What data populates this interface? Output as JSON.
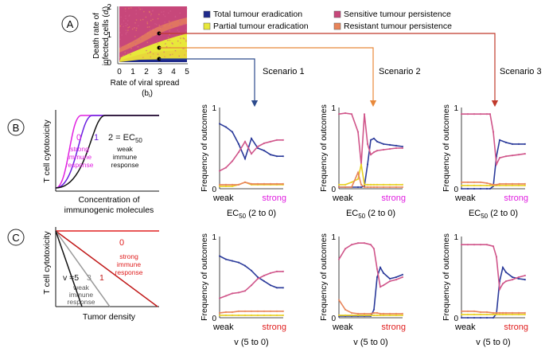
{
  "labels": {
    "A": "A",
    "B": "B",
    "C": "C"
  },
  "panel_a": {
    "y_label_line1": "Death rate of",
    "y_label_line2": "infected cells (",
    "y_label_sym": "d",
    "y_label_sub": "i",
    "y_label_end": ")",
    "x_label_line1": "Rate of viral spread",
    "x_label_sym": "(b",
    "x_label_sub": "i",
    "x_label_end": ")",
    "x_ticks": [
      "0",
      "1",
      "2",
      "3",
      "4",
      "5"
    ],
    "y_ticks": [
      "0",
      "1",
      "2"
    ],
    "colors": {
      "total": "#1f2a8c",
      "partial": "#e8e83a",
      "sensitive": "#c7477a",
      "resistant": "#e8845a"
    }
  },
  "legend": [
    {
      "label": "Total tumour eradication",
      "color": "#1f2a8c"
    },
    {
      "label": "Sensitive tumour persistence",
      "color": "#c7477a"
    },
    {
      "label": "Partial tumour eradication",
      "color": "#e8e83a"
    },
    {
      "label": "Resistant tumour persistence",
      "color": "#e8845a"
    }
  ],
  "scenarios": [
    {
      "label": "Scenario 1",
      "color": "#2c4a8c"
    },
    {
      "label": "Scenario 2",
      "color": "#e8893a"
    },
    {
      "label": "Scenario 3",
      "color": "#c0392b"
    }
  ],
  "panel_b": {
    "y_label": "T cell cytotoxicity",
    "x_label": "Concentration of",
    "x_label2": "immunogenic molecules",
    "curve0_label": "0",
    "curve1_label": "1",
    "curve2_label": "2 = EC",
    "curve2_sub": "50",
    "strong_text": [
      "strong",
      "immune",
      "response"
    ],
    "weak_text": [
      "weak",
      "immune",
      "response"
    ],
    "colors": {
      "c0": "#e020e0",
      "c1": "#6a1ee0",
      "c2": "#111111"
    }
  },
  "panel_c": {
    "y_label": "T cell cytotoxicity",
    "x_label": "Tumor density",
    "v_label": "v =5",
    "v3": "3",
    "v1": "1",
    "v0": "0",
    "strong_text": [
      "strong",
      "immune",
      "response"
    ],
    "weak_text": [
      "weak",
      "immune",
      "response"
    ],
    "colors": {
      "v0": "#e02020",
      "v1": "#c01818",
      "v3": "#999999",
      "v5": "#111111"
    }
  },
  "small_chart_common": {
    "y_label": "Frequency of outcomes",
    "y_ticks": [
      "0",
      "1"
    ],
    "x_weak": "weak",
    "x_strong": "strong",
    "xlabel_b_main": "EC",
    "xlabel_b_sub": "50",
    "xlabel_b_tail": " (2 to 0)",
    "xlabel_c": "v  (5 to 0)",
    "strong_color_b": "#e020e0",
    "strong_color_c": "#e02020"
  },
  "chart_data": [
    {
      "type": "line",
      "id": "B1",
      "title": "Scenario 1 / EC50",
      "xlabel": "EC50 (2 to 0)",
      "ylabel": "Frequency of outcomes",
      "ylim": [
        0,
        1
      ],
      "x": [
        0,
        0.1,
        0.2,
        0.3,
        0.4,
        0.5,
        0.6,
        0.7,
        0.8,
        0.9,
        1.0
      ],
      "series": [
        {
          "name": "Total tumour eradication",
          "values": [
            0.8,
            0.76,
            0.7,
            0.55,
            0.37,
            0.62,
            0.5,
            0.47,
            0.42,
            0.4,
            0.4
          ]
        },
        {
          "name": "Sensitive tumour persistence",
          "values": [
            0.22,
            0.26,
            0.34,
            0.45,
            0.58,
            0.43,
            0.52,
            0.56,
            0.58,
            0.6,
            0.6
          ]
        },
        {
          "name": "Partial tumour eradication",
          "values": [
            0.03,
            0.03,
            0.03,
            0.05,
            0.08,
            0.05,
            0.05,
            0.05,
            0.05,
            0.05,
            0.05
          ]
        },
        {
          "name": "Resistant tumour persistence",
          "values": [
            0.05,
            0.05,
            0.05,
            0.05,
            0.08,
            0.06,
            0.06,
            0.06,
            0.06,
            0.06,
            0.06
          ]
        }
      ]
    },
    {
      "type": "line",
      "id": "B2",
      "title": "Scenario 2 / EC50",
      "xlabel": "EC50 (2 to 0)",
      "ylabel": "Frequency of outcomes",
      "ylim": [
        0,
        1
      ],
      "x": [
        0,
        0.1,
        0.2,
        0.3,
        0.35,
        0.4,
        0.45,
        0.5,
        0.55,
        0.6,
        0.7,
        0.8,
        0.9,
        1.0
      ],
      "series": [
        {
          "name": "Total tumour eradication",
          "values": [
            0.02,
            0.02,
            0.02,
            0.02,
            0.02,
            0.03,
            0.3,
            0.6,
            0.62,
            0.58,
            0.55,
            0.54,
            0.53,
            0.52
          ]
        },
        {
          "name": "Sensitive tumour persistence",
          "values": [
            0.92,
            0.93,
            0.92,
            0.7,
            0.3,
            0.92,
            0.55,
            0.42,
            0.45,
            0.47,
            0.48,
            0.49,
            0.5,
            0.5
          ]
        },
        {
          "name": "Partial tumour eradication",
          "values": [
            0.05,
            0.05,
            0.08,
            0.12,
            0.3,
            0.05,
            0.05,
            0.05,
            0.05,
            0.05,
            0.05,
            0.05,
            0.05,
            0.05
          ]
        },
        {
          "name": "Resistant tumour persistence",
          "values": [
            0.02,
            0.02,
            0.02,
            0.2,
            0.05,
            0.02,
            0.02,
            0.02,
            0.02,
            0.02,
            0.02,
            0.02,
            0.02,
            0.02
          ]
        }
      ]
    },
    {
      "type": "line",
      "id": "B3",
      "title": "Scenario 3 / EC50",
      "xlabel": "EC50 (2 to 0)",
      "ylabel": "Frequency of outcomes",
      "ylim": [
        0,
        1
      ],
      "x": [
        0,
        0.1,
        0.2,
        0.3,
        0.4,
        0.45,
        0.5,
        0.55,
        0.6,
        0.7,
        0.8,
        0.9,
        1.0
      ],
      "series": [
        {
          "name": "Total tumour eradication",
          "values": [
            0.0,
            0.0,
            0.0,
            0.0,
            0.0,
            0.0,
            0.03,
            0.4,
            0.6,
            0.57,
            0.55,
            0.55,
            0.55
          ]
        },
        {
          "name": "Sensitive tumour persistence",
          "values": [
            0.92,
            0.92,
            0.92,
            0.92,
            0.92,
            0.92,
            0.7,
            0.3,
            0.38,
            0.4,
            0.41,
            0.42,
            0.43
          ]
        },
        {
          "name": "Partial tumour eradication",
          "values": [
            0.04,
            0.04,
            0.04,
            0.04,
            0.04,
            0.04,
            0.04,
            0.04,
            0.04,
            0.04,
            0.04,
            0.04,
            0.04
          ]
        },
        {
          "name": "Resistant tumour persistence",
          "values": [
            0.08,
            0.08,
            0.08,
            0.08,
            0.07,
            0.06,
            0.05,
            0.05,
            0.06,
            0.06,
            0.06,
            0.06,
            0.06
          ]
        }
      ]
    },
    {
      "type": "line",
      "id": "C1",
      "title": "Scenario 1 / v",
      "xlabel": "v (5 to 0)",
      "ylabel": "Frequency of outcomes",
      "ylim": [
        0,
        1
      ],
      "x": [
        0,
        0.1,
        0.2,
        0.3,
        0.4,
        0.5,
        0.6,
        0.7,
        0.8,
        0.9,
        1.0
      ],
      "series": [
        {
          "name": "Total tumour eradication",
          "values": [
            0.76,
            0.72,
            0.7,
            0.68,
            0.64,
            0.58,
            0.5,
            0.45,
            0.4,
            0.37,
            0.37
          ]
        },
        {
          "name": "Sensitive tumour persistence",
          "values": [
            0.24,
            0.27,
            0.3,
            0.31,
            0.33,
            0.4,
            0.48,
            0.52,
            0.55,
            0.57,
            0.57
          ]
        },
        {
          "name": "Partial tumour eradication",
          "values": [
            0.03,
            0.03,
            0.03,
            0.03,
            0.03,
            0.03,
            0.03,
            0.03,
            0.03,
            0.03,
            0.03
          ]
        },
        {
          "name": "Resistant tumour persistence",
          "values": [
            0.06,
            0.07,
            0.07,
            0.08,
            0.08,
            0.08,
            0.08,
            0.08,
            0.08,
            0.08,
            0.08
          ]
        }
      ]
    },
    {
      "type": "line",
      "id": "C2",
      "title": "Scenario 2 / v",
      "xlabel": "v (5 to 0)",
      "ylabel": "Frequency of outcomes",
      "ylim": [
        0,
        1
      ],
      "x": [
        0,
        0.1,
        0.2,
        0.3,
        0.4,
        0.5,
        0.55,
        0.6,
        0.65,
        0.7,
        0.8,
        0.9,
        1.0
      ],
      "series": [
        {
          "name": "Total tumour eradication",
          "values": [
            0.02,
            0.02,
            0.02,
            0.02,
            0.02,
            0.02,
            0.1,
            0.5,
            0.62,
            0.55,
            0.48,
            0.5,
            0.53
          ]
        },
        {
          "name": "Sensitive tumour persistence",
          "values": [
            0.72,
            0.85,
            0.9,
            0.92,
            0.92,
            0.9,
            0.85,
            0.6,
            0.38,
            0.4,
            0.45,
            0.47,
            0.5
          ]
        },
        {
          "name": "Partial tumour eradication",
          "values": [
            0.03,
            0.03,
            0.03,
            0.03,
            0.03,
            0.03,
            0.03,
            0.03,
            0.03,
            0.03,
            0.03,
            0.03,
            0.03
          ]
        },
        {
          "name": "Resistant tumour persistence",
          "values": [
            0.22,
            0.1,
            0.06,
            0.05,
            0.05,
            0.05,
            0.06,
            0.06,
            0.05,
            0.05,
            0.05,
            0.05,
            0.05
          ]
        }
      ]
    },
    {
      "type": "line",
      "id": "C3",
      "title": "Scenario 3 / v",
      "xlabel": "v (5 to 0)",
      "ylabel": "Frequency of outcomes",
      "ylim": [
        0,
        1
      ],
      "x": [
        0,
        0.1,
        0.2,
        0.3,
        0.4,
        0.5,
        0.55,
        0.6,
        0.65,
        0.7,
        0.8,
        0.9,
        1.0
      ],
      "series": [
        {
          "name": "Total tumour eradication",
          "values": [
            0.0,
            0.0,
            0.0,
            0.0,
            0.0,
            0.0,
            0.05,
            0.45,
            0.62,
            0.56,
            0.5,
            0.48,
            0.47
          ]
        },
        {
          "name": "Sensitive tumour persistence",
          "values": [
            0.9,
            0.9,
            0.9,
            0.9,
            0.9,
            0.88,
            0.75,
            0.35,
            0.42,
            0.45,
            0.47,
            0.5,
            0.52
          ]
        },
        {
          "name": "Partial tumour eradication",
          "values": [
            0.04,
            0.04,
            0.04,
            0.04,
            0.04,
            0.04,
            0.04,
            0.04,
            0.04,
            0.04,
            0.04,
            0.04,
            0.04
          ]
        },
        {
          "name": "Resistant tumour persistence",
          "values": [
            0.08,
            0.08,
            0.08,
            0.07,
            0.07,
            0.06,
            0.06,
            0.06,
            0.06,
            0.06,
            0.06,
            0.06,
            0.06
          ]
        }
      ]
    }
  ]
}
